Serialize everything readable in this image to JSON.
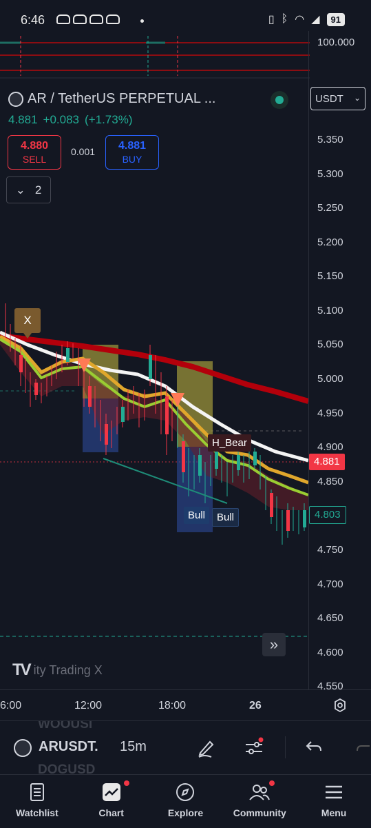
{
  "status_bar": {
    "time": "6:46",
    "battery": "91"
  },
  "symbol": {
    "name": "AR / TetherUS PERPETUAL ...",
    "currency": "USDT",
    "last": "4.881",
    "change": "+0.083",
    "change_pct": "(+1.73%)"
  },
  "trade": {
    "sell_price": "4.880",
    "sell_label": "SELL",
    "spread": "0.001",
    "buy_price": "4.881",
    "buy_label": "BUY"
  },
  "indicators_toggle": {
    "count": "2"
  },
  "price_axis": {
    "top_pane_tick": "100.000",
    "ticks": [
      "5.350",
      "5.300",
      "5.250",
      "5.200",
      "5.150",
      "5.100",
      "5.050",
      "5.000",
      "4.950",
      "4.900",
      "4.850",
      "4.800",
      "4.750",
      "4.700",
      "4.650",
      "4.600",
      "4.550"
    ],
    "last_price_tag": "4.881",
    "ma_tag": "4.803"
  },
  "time_axis": {
    "labels": [
      "6:00",
      "12:00",
      "18:00",
      "26"
    ]
  },
  "chart_labels": {
    "x_marker": "X",
    "h_bear": "H_Bear",
    "bull_1": "Bull",
    "bull_2": "Bull"
  },
  "watermark": {
    "logo": "TV",
    "text": "ity Trading X"
  },
  "toolbar": {
    "symbol": "ARUSDT.",
    "interval": "15m",
    "ghost_above": "WOOUSI",
    "ghost_below": "DOGUSD"
  },
  "bottom_nav": {
    "items": [
      {
        "label": "Watchlist",
        "icon": "watchlist-icon"
      },
      {
        "label": "Chart",
        "icon": "chart-icon"
      },
      {
        "label": "Explore",
        "icon": "compass-icon"
      },
      {
        "label": "Community",
        "icon": "community-icon"
      },
      {
        "label": "Menu",
        "icon": "hamburger-icon"
      }
    ]
  },
  "colors": {
    "bg": "#131722",
    "up": "#22ab94",
    "down": "#f23645",
    "accent": "#2962ff"
  }
}
